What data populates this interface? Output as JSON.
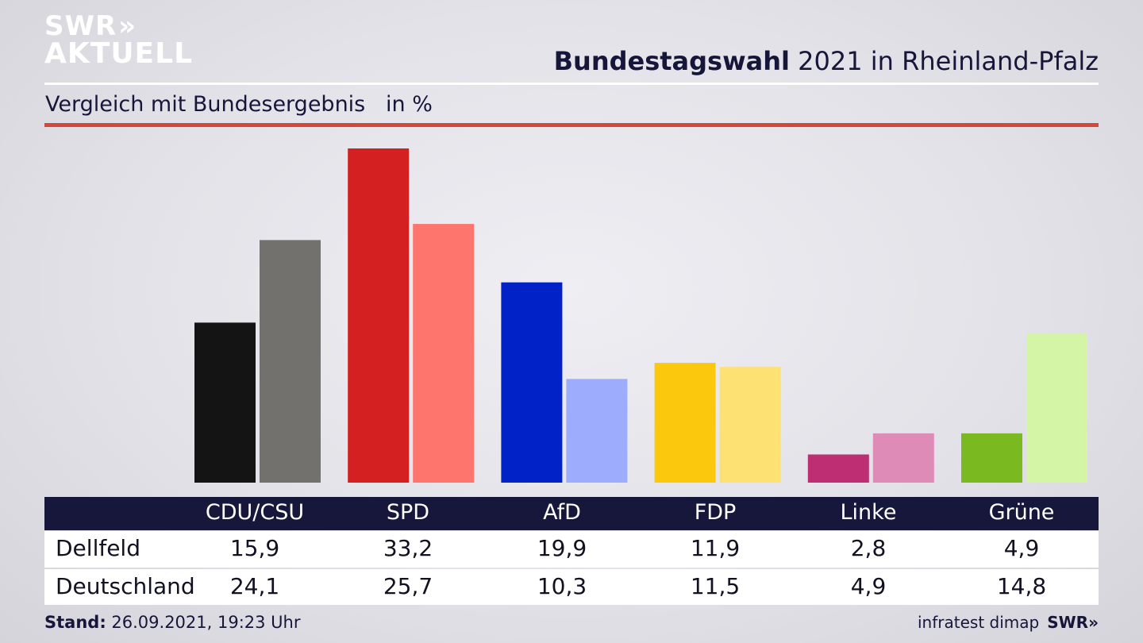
{
  "logo": {
    "line1": "SWR",
    "line2": "AKTUELL",
    "chevrons": "»"
  },
  "header": {
    "title_bold": "Bundestagswahl",
    "title_rest": " 2021 in Rheinland-Pfalz"
  },
  "subtitle": "Vergleich mit Bundesergebnis   in %",
  "colors": {
    "accent_line": "#d6473b",
    "table_header": "#16173a",
    "CDU/CSU": [
      "#141414",
      "#73716e"
    ],
    "SPD": [
      "#d42020",
      "#fe756d"
    ],
    "AfD": [
      "#0022c6",
      "#9dacfd"
    ],
    "FDP": [
      "#fcc80d",
      "#fde173"
    ],
    "Linke": [
      "#bd2f72",
      "#df8bb8"
    ],
    "Grüne": [
      "#7aba20",
      "#d4f5a6"
    ]
  },
  "chart_data": {
    "type": "bar",
    "categories": [
      "CDU/CSU",
      "SPD",
      "AfD",
      "FDP",
      "Linke",
      "Grüne"
    ],
    "series": [
      {
        "name": "Dellfeld",
        "values": [
          15.9,
          33.2,
          19.9,
          11.9,
          2.8,
          4.9
        ]
      },
      {
        "name": "Deutschland",
        "values": [
          24.1,
          25.7,
          10.3,
          11.5,
          4.9,
          14.8
        ]
      }
    ],
    "unit": "in %",
    "ylim": [
      0,
      33.2
    ],
    "grid": false,
    "legend": "table below chart"
  },
  "table": {
    "headers": [
      "CDU/CSU",
      "SPD",
      "AfD",
      "FDP",
      "Linke",
      "Grüne"
    ],
    "rows": [
      {
        "label": "Dellfeld",
        "values": [
          "15,9",
          "33,2",
          "19,9",
          "11,9",
          "2,8",
          "4,9"
        ]
      },
      {
        "label": "Deutschland",
        "values": [
          "24,1",
          "25,7",
          "10,3",
          "11,5",
          "4,9",
          "14,8"
        ]
      }
    ]
  },
  "footer": {
    "stand_label": "Stand:",
    "stand_value": " 26.09.2021, 19:23 Uhr",
    "source": "infratest dimap",
    "brand": "SWR»"
  }
}
